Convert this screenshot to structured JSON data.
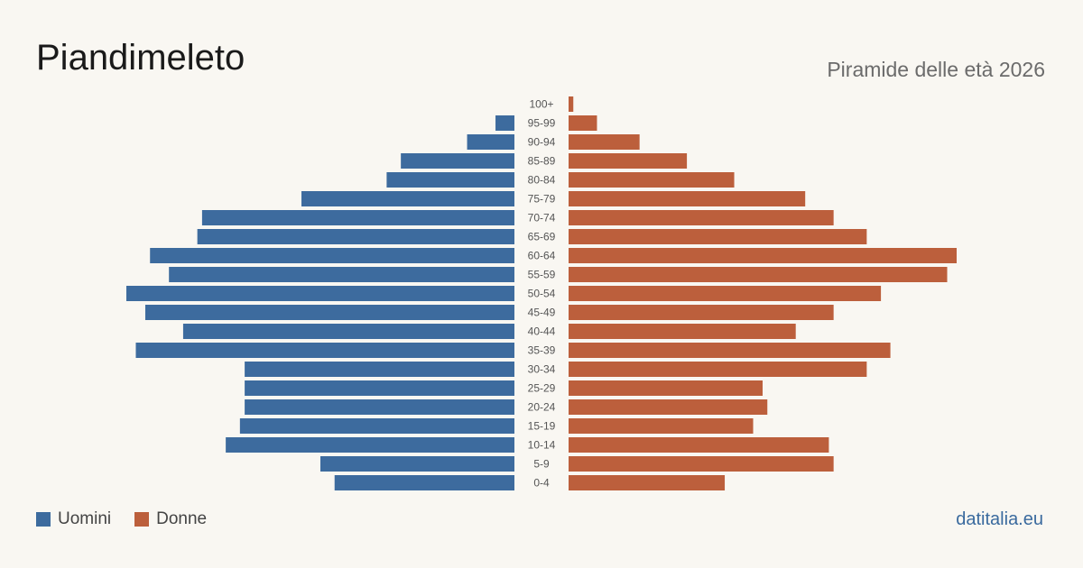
{
  "header": {
    "title": "Piandimeleto",
    "subtitle": "Piramide delle età 2026"
  },
  "legend": {
    "men_label": "Uomini",
    "women_label": "Donne"
  },
  "source": "datitalia.eu",
  "colors": {
    "men": "#3d6b9e",
    "women": "#bc5f3c",
    "background": "#f9f7f2"
  },
  "chart_data": {
    "type": "bar",
    "orientation": "horizontal-pyramid",
    "categories": [
      "100+",
      "95-99",
      "90-94",
      "85-89",
      "80-84",
      "75-79",
      "70-74",
      "65-69",
      "60-64",
      "55-59",
      "50-54",
      "45-49",
      "40-44",
      "35-39",
      "30-34",
      "25-29",
      "20-24",
      "15-19",
      "10-14",
      "5-9",
      "0-4"
    ],
    "series": [
      {
        "name": "Uomini",
        "values": [
          0,
          4,
          10,
          24,
          27,
          45,
          66,
          67,
          77,
          73,
          82,
          78,
          70,
          80,
          57,
          57,
          57,
          58,
          61,
          41,
          38
        ]
      },
      {
        "name": "Donne",
        "values": [
          1,
          6,
          15,
          25,
          35,
          50,
          56,
          63,
          82,
          80,
          66,
          56,
          48,
          68,
          63,
          41,
          42,
          39,
          55,
          56,
          33
        ]
      }
    ],
    "xlim": [
      0,
      90
    ],
    "legend_position": "bottom-left",
    "grid": false
  }
}
